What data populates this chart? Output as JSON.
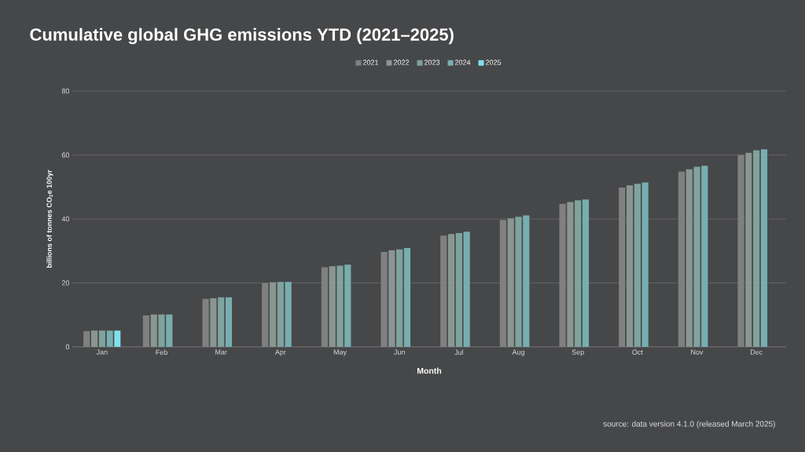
{
  "chart_data": {
    "type": "bar",
    "title": "Cumulative global GHG emissions YTD (2021–2025)",
    "xlabel": "Month",
    "ylabel": "billions of tonnes CO$_{2}$e 100yr",
    "categories": [
      "Jan",
      "Feb",
      "Mar",
      "Apr",
      "May",
      "Jun",
      "Jul",
      "Aug",
      "Sep",
      "Oct",
      "Nov",
      "Dec"
    ],
    "series": [
      {
        "name": "2021",
        "color": "#808080",
        "values": [
          4.9,
          9.8,
          15.0,
          19.9,
          24.9,
          29.7,
          34.8,
          39.7,
          44.7,
          49.8,
          54.8,
          60.0
        ]
      },
      {
        "name": "2022",
        "color": "#8a9692",
        "values": [
          5.1,
          10.1,
          15.2,
          20.2,
          25.2,
          30.2,
          35.3,
          40.2,
          45.3,
          50.5,
          55.5,
          60.7
        ]
      },
      {
        "name": "2023",
        "color": "#7fa39d",
        "values": [
          5.1,
          10.1,
          15.5,
          20.3,
          25.4,
          30.5,
          35.6,
          40.7,
          45.8,
          51.0,
          56.3,
          61.5
        ]
      },
      {
        "name": "2024",
        "color": "#77aeb0",
        "values": [
          5.1,
          10.1,
          15.5,
          20.3,
          25.7,
          30.9,
          36.0,
          41.1,
          46.1,
          51.4,
          56.6,
          61.8
        ]
      },
      {
        "name": "2025",
        "color": "#7fe0ec",
        "values": [
          5.1,
          null,
          null,
          null,
          null,
          null,
          null,
          null,
          null,
          null,
          null,
          null
        ]
      }
    ],
    "ylim": [
      0,
      80
    ],
    "yticks": [
      0,
      20,
      40,
      60,
      80
    ],
    "grid": "y",
    "legend": "top",
    "annotations": [
      "source: data version 4.1.0 (released March 2025)"
    ]
  }
}
